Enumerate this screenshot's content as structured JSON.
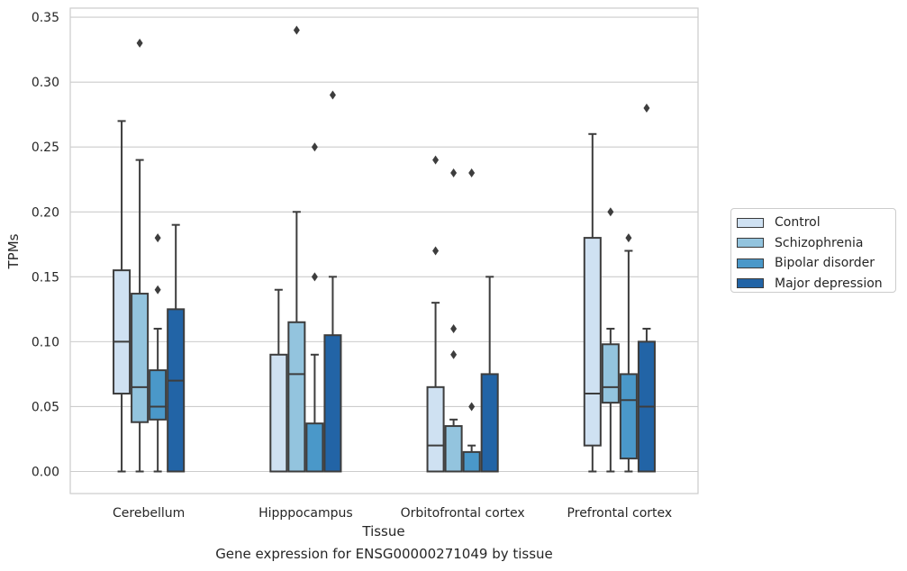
{
  "chart_data": {
    "type": "box",
    "title": "",
    "xlabel": "Tissue",
    "ylabel": "TPMs",
    "caption": "Gene expression for ENSG00000271049 by tissue",
    "ylim": [
      -0.017,
      0.357
    ],
    "yticks": [
      "0.00",
      "0.05",
      "0.10",
      "0.15",
      "0.20",
      "0.25",
      "0.30",
      "0.35"
    ],
    "ytick_values": [
      0,
      0.05,
      0.1,
      0.15,
      0.2,
      0.25,
      0.3,
      0.35
    ],
    "grid": "horizontal",
    "legend_position": "right",
    "categories": [
      "Cerebellum",
      "Hipppocampus",
      "Orbitofrontal cortex",
      "Prefrontal cortex"
    ],
    "series": [
      {
        "name": "Control",
        "color": "#cfe1f2",
        "boxes": [
          {
            "whisker_low": 0,
            "q1": 0.06,
            "median": 0.1,
            "q3": 0.155,
            "whisker_high": 0.27,
            "outliers": []
          },
          {
            "whisker_low": 0,
            "q1": 0,
            "median": 0,
            "q3": 0.09,
            "whisker_high": 0.14,
            "outliers": []
          },
          {
            "whisker_low": 0,
            "q1": 0,
            "median": 0.02,
            "q3": 0.065,
            "whisker_high": 0.13,
            "outliers": [
              0.17,
              0.24
            ]
          },
          {
            "whisker_low": 0,
            "q1": 0.02,
            "median": 0.06,
            "q3": 0.18,
            "whisker_high": 0.26,
            "outliers": []
          }
        ]
      },
      {
        "name": "Schizophrenia",
        "color": "#93c4de",
        "boxes": [
          {
            "whisker_low": 0,
            "q1": 0.038,
            "median": 0.065,
            "q3": 0.137,
            "whisker_high": 0.24,
            "outliers": [
              0.33
            ]
          },
          {
            "whisker_low": 0,
            "q1": 0,
            "median": 0.075,
            "q3": 0.115,
            "whisker_high": 0.2,
            "outliers": [
              0.34
            ]
          },
          {
            "whisker_low": 0,
            "q1": 0,
            "median": 0,
            "q3": 0.035,
            "whisker_high": 0.04,
            "outliers": [
              0.09,
              0.11,
              0.23
            ]
          },
          {
            "whisker_low": 0,
            "q1": 0.053,
            "median": 0.065,
            "q3": 0.098,
            "whisker_high": 0.11,
            "outliers": [
              0.2
            ]
          }
        ]
      },
      {
        "name": "Bipolar disorder",
        "color": "#4a98c9",
        "boxes": [
          {
            "whisker_low": 0,
            "q1": 0.04,
            "median": 0.05,
            "q3": 0.078,
            "whisker_high": 0.11,
            "outliers": [
              0.14,
              0.18
            ]
          },
          {
            "whisker_low": 0,
            "q1": 0,
            "median": 0,
            "q3": 0.037,
            "whisker_high": 0.09,
            "outliers": [
              0.15,
              0.25
            ]
          },
          {
            "whisker_low": 0,
            "q1": 0,
            "median": 0,
            "q3": 0.015,
            "whisker_high": 0.02,
            "outliers": [
              0.05,
              0.23
            ]
          },
          {
            "whisker_low": 0,
            "q1": 0.01,
            "median": 0.055,
            "q3": 0.075,
            "whisker_high": 0.17,
            "outliers": [
              0.18
            ]
          }
        ]
      },
      {
        "name": "Major depression",
        "color": "#2264a6",
        "boxes": [
          {
            "whisker_low": 0,
            "q1": 0,
            "median": 0.07,
            "q3": 0.125,
            "whisker_high": 0.19,
            "outliers": []
          },
          {
            "whisker_low": 0,
            "q1": 0,
            "median": 0,
            "q3": 0.105,
            "whisker_high": 0.15,
            "outliers": [
              0.29
            ]
          },
          {
            "whisker_low": 0,
            "q1": 0,
            "median": 0,
            "q3": 0.075,
            "whisker_high": 0.15,
            "outliers": []
          },
          {
            "whisker_low": 0,
            "q1": 0,
            "median": 0.05,
            "q3": 0.1,
            "whisker_high": 0.11,
            "outliers": [
              0.28
            ]
          }
        ]
      }
    ]
  }
}
